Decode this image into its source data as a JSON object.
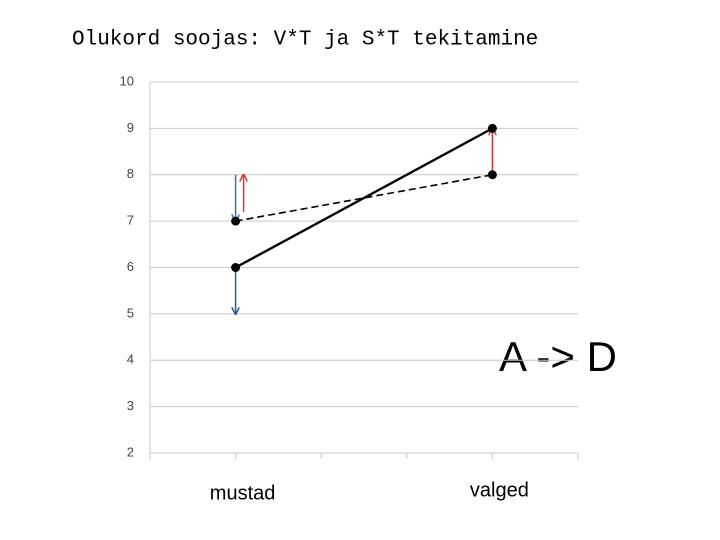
{
  "chart_data": {
    "type": "line",
    "title": "Olukord soojas: V*T ja S*T tekitamine",
    "categories": [
      "mustad",
      "valged"
    ],
    "series": [
      {
        "color": "#000000",
        "dashed": false,
        "values": [
          6,
          9
        ]
      },
      {
        "color": "#000000",
        "dashed": true,
        "values": [
          7,
          8
        ]
      }
    ],
    "arrows": [
      {
        "category": 0,
        "from": 8,
        "to": 7,
        "color": "#2e75b6"
      },
      {
        "category": 0,
        "from": 7.2,
        "to": 8,
        "color": "#e03030"
      },
      {
        "category": 0,
        "from": 6,
        "to": 5,
        "color": "#1f5fa0"
      },
      {
        "category": 1,
        "from": 8,
        "to": 9,
        "color": "#e03030"
      }
    ],
    "annotation": "A -> D",
    "ylim": [
      2,
      10
    ],
    "yticks": [
      2,
      3,
      4,
      5,
      6,
      7,
      8,
      9,
      10
    ],
    "grid": true
  }
}
